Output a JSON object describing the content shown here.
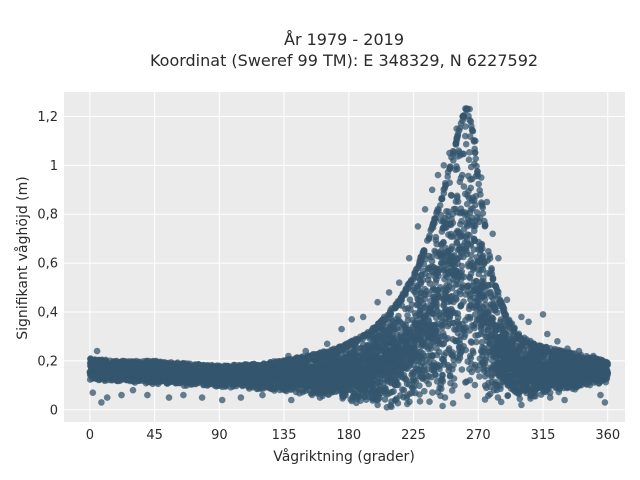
{
  "chart_data": {
    "type": "scatter",
    "title_line1": "År 1979 - 2019",
    "title_line2": "Koordinat (Sweref 99 TM): E 348329, N 6227592",
    "xlabel": "Vågriktning (grader)",
    "ylabel": "Signifikant våghöjd (m)",
    "xlim": [
      -18,
      372
    ],
    "ylim": [
      -0.05,
      1.3
    ],
    "x_ticks": [
      0,
      45,
      90,
      135,
      180,
      225,
      270,
      315,
      360
    ],
    "x_tick_labels": [
      "0",
      "45",
      "90",
      "135",
      "180",
      "225",
      "270",
      "315",
      "360"
    ],
    "y_ticks": [
      0,
      0.2,
      0.4,
      0.6,
      0.8,
      1.0,
      1.2
    ],
    "y_tick_labels": [
      "0",
      "0,2",
      "0,4",
      "0,6",
      "0,8",
      "1",
      "1,2"
    ],
    "grid": true,
    "marker_color": "#34566e",
    "envelope": {
      "description_upper_lower": "upper and lower bounds of the dense point cloud",
      "x": [
        0,
        20,
        45,
        90,
        120,
        150,
        170,
        185,
        200,
        215,
        225,
        235,
        245,
        252,
        258,
        262,
        266,
        270,
        275,
        280,
        290,
        300,
        315,
        330,
        345,
        360
      ],
      "upper": [
        0.21,
        0.2,
        0.2,
        0.18,
        0.19,
        0.22,
        0.25,
        0.29,
        0.35,
        0.45,
        0.55,
        0.7,
        0.88,
        1.05,
        1.18,
        1.25,
        1.15,
        0.95,
        0.75,
        0.55,
        0.38,
        0.3,
        0.26,
        0.24,
        0.22,
        0.2
      ],
      "lower": [
        0.12,
        0.11,
        0.1,
        0.09,
        0.08,
        0.06,
        0.04,
        0.02,
        0.01,
        0.0,
        0.0,
        0.0,
        0.0,
        0.0,
        0.0,
        0.0,
        0.0,
        0.0,
        0.0,
        0.01,
        0.02,
        0.03,
        0.05,
        0.07,
        0.09,
        0.11
      ]
    },
    "outliers": [
      [
        2,
        0.07
      ],
      [
        5,
        0.24
      ],
      [
        8,
        0.03
      ],
      [
        12,
        0.05
      ],
      [
        22,
        0.06
      ],
      [
        30,
        0.08
      ],
      [
        40,
        0.06
      ],
      [
        55,
        0.05
      ],
      [
        65,
        0.06
      ],
      [
        78,
        0.05
      ],
      [
        92,
        0.04
      ],
      [
        105,
        0.05
      ],
      [
        120,
        0.06
      ],
      [
        138,
        0.22
      ],
      [
        150,
        0.24
      ],
      [
        165,
        0.27
      ],
      [
        175,
        0.33
      ],
      [
        182,
        0.37
      ],
      [
        190,
        0.38
      ],
      [
        200,
        0.44
      ],
      [
        208,
        0.48
      ],
      [
        215,
        0.52
      ],
      [
        222,
        0.62
      ],
      [
        228,
        0.75
      ],
      [
        233,
        0.82
      ],
      [
        238,
        0.9
      ],
      [
        242,
        0.96
      ],
      [
        246,
        1.0
      ],
      [
        250,
        1.05
      ],
      [
        255,
        1.15
      ],
      [
        260,
        1.2
      ],
      [
        264,
        1.23
      ],
      [
        268,
        1.1
      ],
      [
        272,
        0.95
      ],
      [
        276,
        0.85
      ],
      [
        280,
        0.72
      ],
      [
        284,
        0.62
      ],
      [
        290,
        0.45
      ],
      [
        300,
        0.38
      ],
      [
        305,
        0.36
      ],
      [
        315,
        0.39
      ],
      [
        318,
        0.31
      ],
      [
        325,
        0.28
      ],
      [
        332,
        0.25
      ],
      [
        340,
        0.24
      ],
      [
        350,
        0.22
      ],
      [
        355,
        0.06
      ],
      [
        358,
        0.03
      ],
      [
        330,
        0.04
      ],
      [
        320,
        0.05
      ],
      [
        300,
        0.02
      ],
      [
        200,
        0.02
      ],
      [
        160,
        0.05
      ],
      [
        140,
        0.04
      ]
    ]
  }
}
